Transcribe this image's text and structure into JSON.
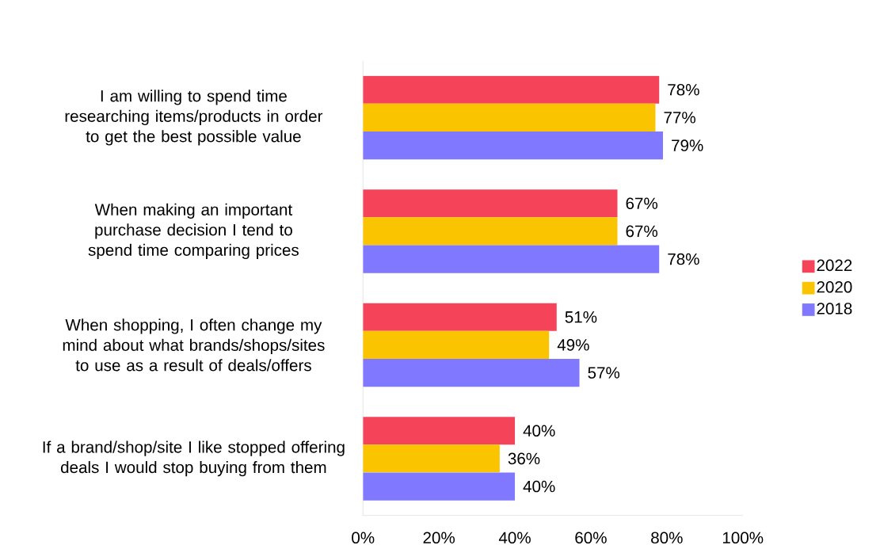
{
  "chart_data": {
    "type": "bar",
    "orientation": "horizontal",
    "categories": [
      "I am willing to spend time researching items/products in order to get the best possible value",
      "When making an important purchase decision I tend to spend time comparing prices",
      "When shopping, I often change my mind about what brands/shops/sites to use as a result of deals/offers",
      "If a brand/shop/site I like stopped offering deals I would stop buying from them"
    ],
    "series": [
      {
        "name": "2022",
        "color": "#f5435a",
        "values": [
          78,
          67,
          51,
          40
        ],
        "value_labels": [
          "78%",
          "67%",
          "51%",
          "40%"
        ]
      },
      {
        "name": "2020",
        "color": "#fac400",
        "values": [
          77,
          67,
          49,
          36
        ],
        "value_labels": [
          "77%",
          "67%",
          "49%",
          "36%"
        ]
      },
      {
        "name": "2018",
        "color": "#8079ff",
        "values": [
          79,
          78,
          57,
          40
        ],
        "value_labels": [
          "79%",
          "78%",
          "57%",
          "40%"
        ]
      }
    ],
    "xlim": [
      0,
      100
    ],
    "xticks": [
      {
        "value": 0,
        "label": "0%"
      },
      {
        "value": 20,
        "label": "20%"
      },
      {
        "value": 40,
        "label": "40%"
      },
      {
        "value": 60,
        "label": "60%"
      },
      {
        "value": 80,
        "label": "80%"
      },
      {
        "value": 100,
        "label": "100%"
      }
    ],
    "grid": false,
    "legend": "right"
  }
}
